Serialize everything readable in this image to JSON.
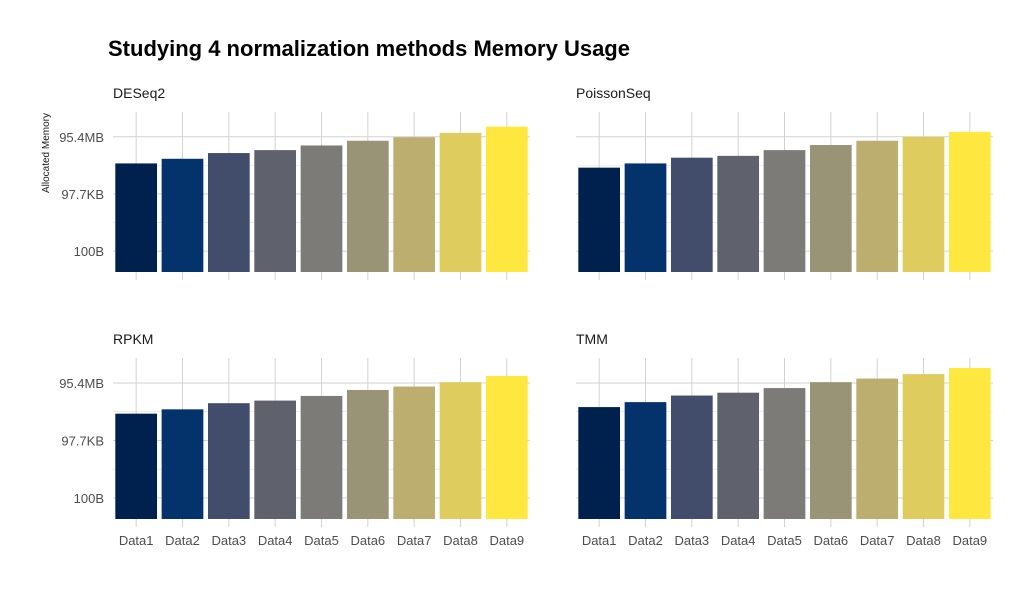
{
  "chart_data": {
    "type": "bar",
    "title": "Studying 4 normalization methods Memory Usage",
    "ylabel": "Allocated Memory",
    "xlabel": "",
    "y_scale": "log10 (bytes)",
    "y_ticks": [
      {
        "label": "100B",
        "bytes": 100
      },
      {
        "label": "97.7KB",
        "bytes": 100000
      },
      {
        "label": "95.4MB",
        "bytes": 100000000
      }
    ],
    "ylim_bytes": [
      8,
      2000000000
    ],
    "categories": [
      "Data1",
      "Data2",
      "Data3",
      "Data4",
      "Data5",
      "Data6",
      "Data7",
      "Data8",
      "Data9"
    ],
    "colors": [
      "#00204d",
      "#04336c",
      "#414d6b",
      "#5f616d",
      "#7c7b78",
      "#9a9477",
      "#bcae6e",
      "#dfcc5f",
      "#fee83f"
    ],
    "grid": true,
    "legend": "none",
    "facets": [
      {
        "name": "DESeq2",
        "values_bytes": [
          4000000,
          7000000,
          14000000,
          20000000,
          35000000,
          62000000,
          95000000,
          160000000,
          340000000
        ]
      },
      {
        "name": "PoissonSeq",
        "values_bytes": [
          2400000,
          4000000,
          8000000,
          10000000,
          20000000,
          37000000,
          62000000,
          100000000,
          180000000
        ]
      },
      {
        "name": "RPKM",
        "values_bytes": [
          2500000,
          4200000,
          8800000,
          12000000,
          21000000,
          43000000,
          65000000,
          110000000,
          230000000
        ]
      },
      {
        "name": "TMM",
        "values_bytes": [
          5500000,
          10000000,
          22000000,
          31000000,
          54000000,
          110000000,
          170000000,
          290000000,
          600000000
        ]
      }
    ]
  }
}
